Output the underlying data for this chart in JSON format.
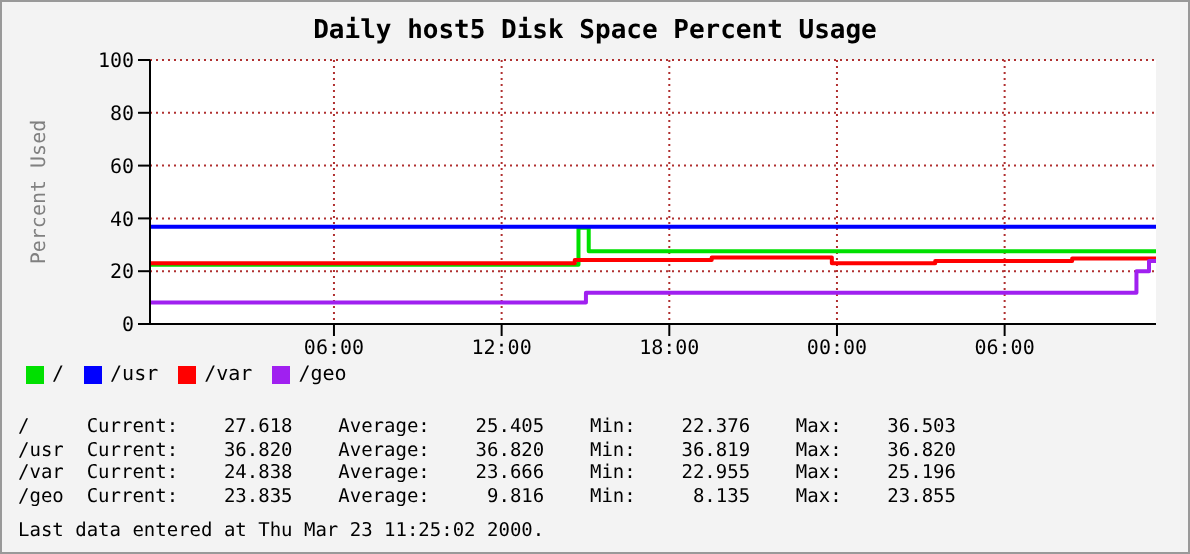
{
  "chart_data": {
    "type": "step",
    "title": "Daily host5 Disk Space Percent Usage",
    "ylabel": "Percent Used",
    "xlim": [
      "2000-03-21T23:25",
      "2000-03-23T11:25"
    ],
    "xticks": [
      {
        "value": "2000-03-22T06:00",
        "label": "06:00"
      },
      {
        "value": "2000-03-22T12:00",
        "label": "12:00"
      },
      {
        "value": "2000-03-22T18:00",
        "label": "18:00"
      },
      {
        "value": "2000-03-23T00:00",
        "label": "00:00"
      },
      {
        "value": "2000-03-23T06:00",
        "label": "06:00"
      }
    ],
    "ylim": [
      0,
      100
    ],
    "yticks": [
      0,
      20,
      40,
      60,
      80,
      100
    ],
    "grid": true,
    "legend": "bottom",
    "marker": "none",
    "series": [
      {
        "name": "/",
        "color": "#00e000",
        "x": [
          "2000-03-21T23:25",
          "2000-03-22T14:37",
          "2000-03-22T14:45",
          "2000-03-22T15:07",
          "2000-03-23T11:25"
        ],
        "values": [
          22.4,
          22.4,
          36.5,
          27.6,
          27.6
        ]
      },
      {
        "name": "/usr",
        "color": "#0000ff",
        "x": [
          "2000-03-21T23:25",
          "2000-03-23T11:25"
        ],
        "values": [
          36.8,
          36.8
        ]
      },
      {
        "name": "/var",
        "color": "#ff0000",
        "x": [
          "2000-03-21T23:25",
          "2000-03-22T14:37",
          "2000-03-22T19:31",
          "2000-03-22T23:49",
          "2000-03-23T03:31",
          "2000-03-23T08:25",
          "2000-03-23T11:25"
        ],
        "values": [
          23,
          24.2,
          25.2,
          23,
          23.9,
          24.8,
          24.8
        ]
      },
      {
        "name": "/geo",
        "color": "#a020f0",
        "x": [
          "2000-03-21T23:25",
          "2000-03-22T15:01",
          "2000-03-23T10:43",
          "2000-03-23T11:10",
          "2000-03-23T11:25"
        ],
        "values": [
          8.1,
          11.8,
          20,
          23.9,
          23.8
        ]
      }
    ],
    "annotations": [
      "/     Current:    27.618    Average:    25.405    Min:    22.376    Max:    36.503",
      "/usr  Current:    36.820    Average:    36.820    Min:    36.819    Max:    36.820",
      "/var  Current:    24.838    Average:    23.666    Min:    22.955    Max:    25.196",
      "/geo  Current:    23.835    Average:     9.816    Min:     8.135    Max:    23.855",
      "Last data entered at Thu Mar 23 11:25:02 2000."
    ]
  }
}
